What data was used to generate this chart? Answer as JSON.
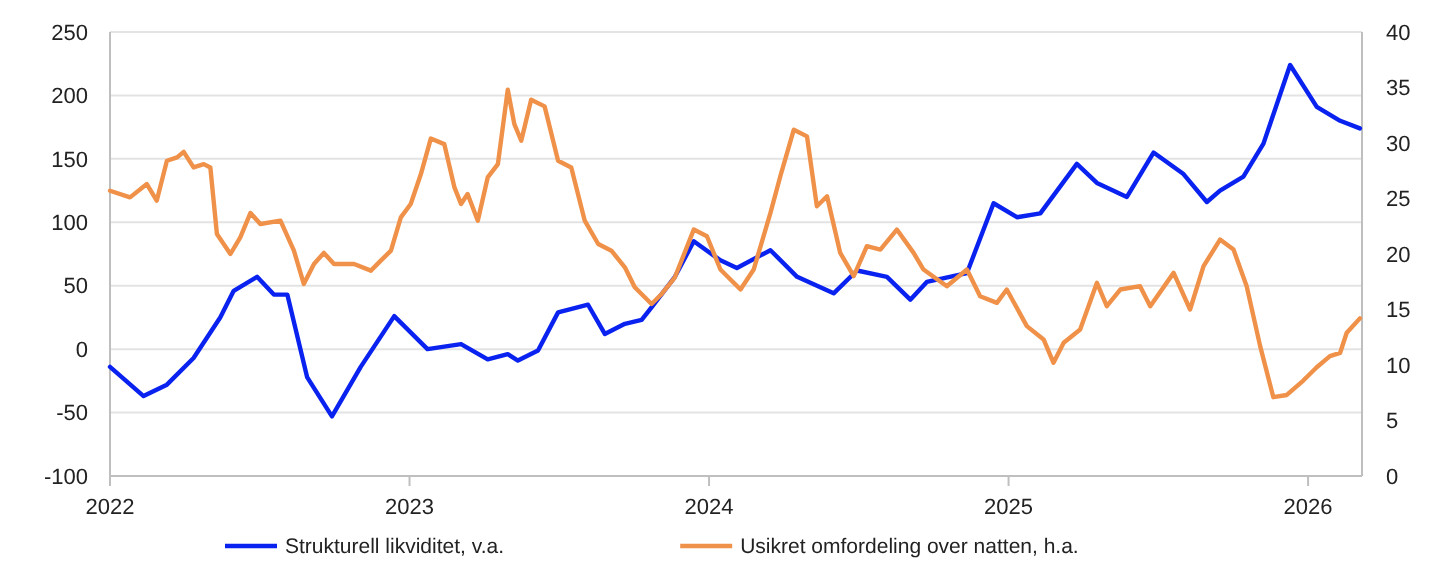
{
  "chart_data": {
    "type": "line",
    "xlim": [
      2022,
      2026.18
    ],
    "xticks": [
      2022,
      2023,
      2024,
      2025,
      2026
    ],
    "ylim": [
      -100,
      250
    ],
    "yticks": [
      -100,
      -50,
      0,
      50,
      100,
      150,
      200,
      250
    ],
    "y2lim": [
      0,
      40
    ],
    "y2ticks": [
      0,
      5,
      10,
      15,
      20,
      25,
      30,
      35,
      40
    ],
    "grid": "y",
    "legend": "bottom",
    "line_style": "solid",
    "marker": "none",
    "series": [
      {
        "name": "Strukturell likviditet, v.a.",
        "color": "#0a22f0",
        "x": [
          2022.0,
          2022.112,
          2022.19,
          2022.279,
          2022.368,
          2022.413,
          2022.491,
          2022.547,
          2022.592,
          2022.658,
          2022.741,
          2022.837,
          2022.949,
          2023.06,
          2023.172,
          2023.261,
          2023.328,
          2023.362,
          2023.429,
          2023.496,
          2023.596,
          2023.652,
          2023.719,
          2023.775,
          2023.808,
          2023.886,
          2023.949,
          2024.038,
          2024.093,
          2024.205,
          2024.294,
          2024.416,
          2024.494,
          2024.594,
          2024.672,
          2024.727,
          2024.861,
          2024.95,
          2025.028,
          2025.106,
          2025.228,
          2025.295,
          2025.395,
          2025.484,
          2025.584,
          2025.662,
          2025.706,
          2025.784,
          2025.851,
          2025.94,
          2026.029,
          2026.107,
          2026.173
        ],
        "values": [
          -14,
          -37,
          -28,
          -7,
          25,
          46,
          57,
          43,
          43,
          -22,
          -53,
          -14,
          26,
          0,
          4,
          -8,
          -4,
          -9,
          -1,
          29,
          35,
          12,
          20,
          23,
          33,
          57,
          85,
          70,
          64,
          78,
          57,
          44,
          62,
          57,
          39,
          53,
          60,
          115,
          104,
          107,
          146,
          131,
          120,
          155,
          138,
          116,
          125,
          136,
          162,
          224,
          191,
          180,
          174
        ]
      },
      {
        "name": "Usikret omfordeling over natten, h.a.",
        "color": "#f0914a",
        "axis": "y2",
        "x": [
          2022.0,
          2022.067,
          2022.123,
          2022.156,
          2022.19,
          2022.224,
          2022.246,
          2022.279,
          2022.313,
          2022.335,
          2022.357,
          2022.402,
          2022.435,
          2022.469,
          2022.502,
          2022.569,
          2022.614,
          2022.647,
          2022.681,
          2022.714,
          2022.748,
          2022.815,
          2022.871,
          2022.904,
          2022.938,
          2022.971,
          2023.004,
          2023.038,
          2023.071,
          2023.116,
          2023.15,
          2023.172,
          2023.194,
          2023.228,
          2023.261,
          2023.295,
          2023.328,
          2023.35,
          2023.373,
          2023.406,
          2023.451,
          2023.496,
          2023.54,
          2023.585,
          2023.63,
          2023.674,
          2023.719,
          2023.752,
          2023.808,
          2023.842,
          2023.886,
          2023.949,
          2023.993,
          2024.038,
          2024.105,
          2024.149,
          2024.205,
          2024.238,
          2024.283,
          2024.327,
          2024.36,
          2024.394,
          2024.438,
          2024.483,
          2024.527,
          2024.572,
          2024.627,
          2024.683,
          2024.716,
          2024.794,
          2024.861,
          2024.905,
          2024.961,
          2024.994,
          2025.061,
          2025.117,
          2025.15,
          2025.184,
          2025.239,
          2025.295,
          2025.328,
          2025.373,
          2025.439,
          2025.473,
          2025.551,
          2025.606,
          2025.651,
          2025.706,
          2025.751,
          2025.795,
          2025.84,
          2025.884,
          2025.929,
          2025.984,
          2026.029,
          2026.073,
          2026.107,
          2026.129,
          2026.173
        ],
        "values": [
          25.7,
          25.1,
          26.3,
          24.8,
          28.4,
          28.7,
          29.2,
          27.8,
          28.1,
          27.8,
          21.8,
          20.0,
          21.5,
          23.7,
          22.7,
          23.0,
          20.3,
          17.3,
          19.1,
          20.1,
          19.1,
          19.1,
          18.5,
          19.4,
          20.3,
          23.3,
          24.5,
          27.2,
          30.4,
          29.9,
          26.0,
          24.5,
          25.4,
          23.0,
          26.9,
          28.1,
          34.8,
          31.7,
          30.2,
          33.9,
          33.3,
          28.4,
          27.8,
          23.0,
          20.9,
          20.3,
          18.8,
          17.0,
          15.5,
          16.4,
          17.9,
          22.2,
          21.6,
          18.6,
          16.8,
          18.6,
          23.7,
          27.0,
          31.2,
          30.6,
          24.3,
          25.2,
          20.1,
          18.0,
          20.7,
          20.4,
          22.2,
          20.1,
          18.6,
          17.1,
          18.6,
          16.2,
          15.6,
          16.8,
          13.5,
          12.3,
          10.2,
          12.0,
          13.2,
          17.4,
          15.3,
          16.8,
          17.1,
          15.3,
          18.3,
          15.0,
          18.9,
          21.3,
          20.4,
          17.1,
          11.7,
          7.1,
          7.3,
          8.6,
          9.8,
          10.8,
          11.1,
          12.9,
          14.2
        ]
      }
    ]
  }
}
